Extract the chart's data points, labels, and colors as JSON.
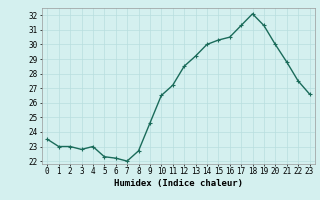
{
  "x": [
    0,
    1,
    2,
    3,
    4,
    5,
    6,
    7,
    8,
    9,
    10,
    11,
    12,
    13,
    14,
    15,
    16,
    17,
    18,
    19,
    20,
    21,
    22,
    23
  ],
  "y": [
    23.5,
    23.0,
    23.0,
    22.8,
    23.0,
    22.3,
    22.2,
    22.0,
    22.7,
    24.6,
    26.5,
    27.2,
    28.5,
    29.2,
    30.0,
    30.3,
    30.5,
    31.3,
    32.1,
    31.3,
    30.0,
    28.8,
    27.5,
    26.6
  ],
  "line_color": "#1a6b5a",
  "marker": "+",
  "marker_size": 3,
  "xlabel": "Humidex (Indice chaleur)",
  "xlim": [
    -0.5,
    23.5
  ],
  "ylim": [
    21.8,
    32.5
  ],
  "yticks": [
    22,
    23,
    24,
    25,
    26,
    27,
    28,
    29,
    30,
    31,
    32
  ],
  "xticks": [
    0,
    1,
    2,
    3,
    4,
    5,
    6,
    7,
    8,
    9,
    10,
    11,
    12,
    13,
    14,
    15,
    16,
    17,
    18,
    19,
    20,
    21,
    22,
    23
  ],
  "bg_color": "#d4f0ef",
  "grid_color": "#b8dede",
  "tick_label_fontsize": 5.5,
  "xlabel_fontsize": 6.5,
  "line_width": 1.0
}
